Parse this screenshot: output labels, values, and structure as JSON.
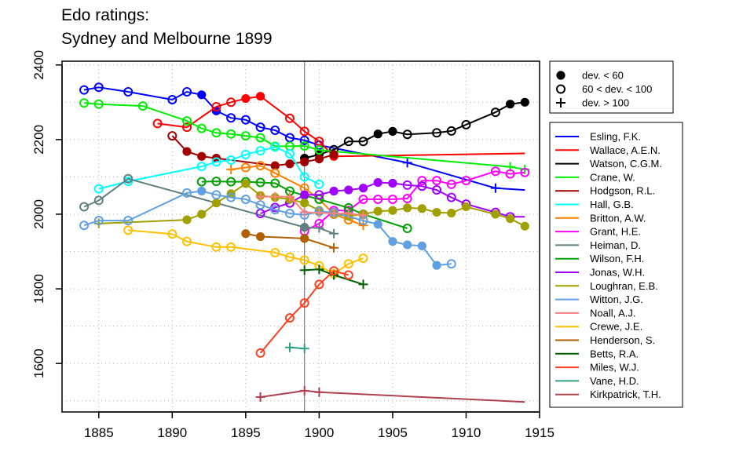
{
  "title_line1": "Edo ratings:",
  "title_line2": "Sydney and Melbourne 1899",
  "marker_legend": [
    {
      "marker": "filled-circle",
      "label": "dev. < 60"
    },
    {
      "marker": "open-circle",
      "label": "60 < dev. < 100"
    },
    {
      "marker": "plus",
      "label": "dev. > 100"
    }
  ],
  "chart_data": {
    "type": "line",
    "title": "Edo ratings:\nSydney and Melbourne 1899",
    "xlabel": "",
    "ylabel": "",
    "xlim": [
      1882.5,
      1915
    ],
    "ylim": [
      1470,
      2410
    ],
    "xticks": [
      1885,
      1890,
      1895,
      1900,
      1905,
      1910,
      1915
    ],
    "yticks": [
      1600,
      1800,
      2000,
      2200,
      2400
    ],
    "grid": true,
    "reference_line_x": 1899,
    "legend_placement": "right",
    "series": [
      {
        "name": "Esling, F.K.",
        "color": "#0000ff",
        "x": [
          1884,
          1885,
          1887,
          1890,
          1891,
          1892,
          1893,
          1894,
          1895,
          1896,
          1897,
          1898,
          1899,
          1900,
          1906,
          1912,
          1914
        ],
        "y": [
          2333,
          2340,
          2328,
          2307,
          2328,
          2320,
          2277,
          2258,
          2253,
          2233,
          2225,
          2205,
          2198,
          2185,
          2138,
          2070,
          2065
        ],
        "m": [
          "o",
          "o",
          "o",
          "o",
          "o",
          "f",
          "f",
          "o",
          "o",
          "o",
          "o",
          "o",
          "o",
          "o",
          "p",
          "p",
          "n"
        ]
      },
      {
        "name": "Wallace, A.E.N.",
        "color": "#ff0000",
        "x": [
          1889,
          1891,
          1893,
          1894,
          1895,
          1896,
          1898,
          1899,
          1900,
          1901,
          1914
        ],
        "y": [
          2243,
          2233,
          2288,
          2300,
          2310,
          2316,
          2257,
          2222,
          2195,
          2155,
          2163
        ],
        "m": [
          "o",
          "o",
          "o",
          "o",
          "f",
          "f",
          "o",
          "o",
          "o",
          "f",
          "n"
        ]
      },
      {
        "name": "Watson, C.G.M.",
        "color": "#000000",
        "x": [
          1899,
          1900,
          1901,
          1902,
          1903,
          1904,
          1905,
          1906,
          1908,
          1909,
          1910,
          1912,
          1913,
          1914
        ],
        "y": [
          2150,
          2160,
          2173,
          2195,
          2195,
          2215,
          2222,
          2214,
          2218,
          2223,
          2240,
          2273,
          2295,
          2300
        ],
        "m": [
          "f",
          "f",
          "o",
          "o",
          "o",
          "f",
          "f",
          "o",
          "o",
          "o",
          "o",
          "o",
          "f",
          "f"
        ]
      },
      {
        "name": "Crane, W.",
        "color": "#00ee00",
        "x": [
          1884,
          1885,
          1888,
          1891,
          1892,
          1893,
          1894,
          1895,
          1896,
          1897,
          1898,
          1899,
          1900,
          1913,
          1914
        ],
        "y": [
          2298,
          2295,
          2290,
          2250,
          2230,
          2218,
          2215,
          2210,
          2205,
          2182,
          2182,
          2183,
          2172,
          2127,
          2120
        ],
        "m": [
          "o",
          "o",
          "o",
          "o",
          "o",
          "o",
          "o",
          "o",
          "o",
          "o",
          "o",
          "o",
          "o",
          "p",
          "p"
        ]
      },
      {
        "name": "Hodgson, R.L.",
        "color": "#a00000",
        "x": [
          1890,
          1891,
          1892,
          1893,
          1897,
          1898,
          1899,
          1900,
          1901
        ],
        "y": [
          2210,
          2168,
          2155,
          2150,
          2130,
          2135,
          2140,
          2148,
          2160
        ],
        "m": [
          "o",
          "f",
          "f",
          "f",
          "f",
          "f",
          "f",
          "f",
          "f"
        ]
      },
      {
        "name": "Hall, G.B.",
        "color": "#00ffff",
        "x": [
          1885,
          1887,
          1892,
          1893,
          1894,
          1895,
          1896,
          1897,
          1898,
          1899,
          1900
        ],
        "y": [
          2068,
          2088,
          2128,
          2140,
          2145,
          2160,
          2170,
          2180,
          2162,
          2100,
          2080
        ],
        "m": [
          "o",
          "o",
          "o",
          "o",
          "o",
          "o",
          "o",
          "o",
          "o",
          "o",
          "o"
        ]
      },
      {
        "name": "Britton, A.W.",
        "color": "#ff8000",
        "x": [
          1894,
          1895,
          1896,
          1897,
          1899,
          1900,
          1901,
          1902,
          1903
        ],
        "y": [
          2120,
          2125,
          2130,
          2110,
          2070,
          2040,
          2000,
          1985,
          1970
        ],
        "m": [
          "p",
          "o",
          "o",
          "o",
          "o",
          "o",
          "o",
          "o",
          "p"
        ]
      },
      {
        "name": "Grant, H.E.",
        "color": "#ff00ff",
        "x": [
          1899,
          1900,
          1901,
          1902,
          1903,
          1904,
          1905,
          1906,
          1907,
          1908,
          1909,
          1910,
          1912,
          1913,
          1914
        ],
        "y": [
          1955,
          1975,
          2010,
          2010,
          2040,
          2040,
          2040,
          2042,
          2090,
          2090,
          2080,
          2090,
          2115,
          2108,
          2112
        ],
        "m": [
          "o",
          "o",
          "o",
          "o",
          "o",
          "o",
          "o",
          "o",
          "o",
          "o",
          "o",
          "o",
          "o",
          "o",
          "o"
        ]
      },
      {
        "name": "Heiman, D.",
        "color": "#608080",
        "x": [
          1884,
          1885,
          1887,
          1899,
          1900,
          1901
        ],
        "y": [
          2020,
          2037,
          2095,
          1965,
          1963,
          1948
        ],
        "m": [
          "o",
          "o",
          "o",
          "f",
          "p",
          "p"
        ]
      },
      {
        "name": "Wilson, F.H.",
        "color": "#00a000",
        "x": [
          1892,
          1893,
          1894,
          1895,
          1896,
          1897,
          1898,
          1899,
          1900,
          1902,
          1903,
          1906
        ],
        "y": [
          2087,
          2088,
          2087,
          2087,
          2085,
          2083,
          2062,
          2050,
          2040,
          2017,
          2000,
          1962
        ],
        "m": [
          "o",
          "o",
          "o",
          "o",
          "o",
          "o",
          "o",
          "f",
          "o",
          "o",
          "o",
          "o"
        ]
      },
      {
        "name": "Jonas, W.H.",
        "color": "#a000ff",
        "x": [
          1896,
          1897,
          1898,
          1899,
          1900,
          1901,
          1902,
          1903,
          1904,
          1905,
          1906,
          1907,
          1908,
          1909,
          1910,
          1912,
          1913,
          1914
        ],
        "y": [
          2002,
          2018,
          2030,
          2052,
          2052,
          2062,
          2065,
          2070,
          2085,
          2083,
          2078,
          2075,
          2065,
          2045,
          2027,
          2005,
          1993,
          1993
        ],
        "m": [
          "o",
          "o",
          "o",
          "f",
          "o",
          "f",
          "f",
          "f",
          "f",
          "f",
          "o",
          "o",
          "o",
          "o",
          "o",
          "o",
          "o",
          "n"
        ]
      },
      {
        "name": "Loughran, E.B.",
        "color": "#a0a000",
        "x": [
          1885,
          1891,
          1892,
          1893,
          1894,
          1895,
          1896,
          1897,
          1898,
          1899,
          1900,
          1901,
          1902,
          1903,
          1904,
          1905,
          1906,
          1907,
          1908,
          1909,
          1910,
          1912,
          1913,
          1914
        ],
        "y": [
          1975,
          1985,
          2000,
          2030,
          2055,
          2082,
          2050,
          2045,
          2040,
          2030,
          2010,
          2000,
          1995,
          2000,
          2008,
          2010,
          2017,
          2015,
          2005,
          2003,
          2020,
          2000,
          1988,
          1968
        ],
        "m": [
          "p",
          "f",
          "f",
          "f",
          "f",
          "f",
          "f",
          "f",
          "f",
          "f",
          "f",
          "f",
          "f",
          "f",
          "f",
          "f",
          "f",
          "f",
          "f",
          "f",
          "f",
          "f",
          "f",
          "f"
        ]
      },
      {
        "name": "Witton, J.G.",
        "color": "#60a0e0",
        "x": [
          1884,
          1885,
          1887,
          1891,
          1892,
          1893,
          1894,
          1895,
          1896,
          1897,
          1898,
          1899,
          1900,
          1901,
          1903,
          1904,
          1905,
          1906,
          1907,
          1908,
          1909
        ],
        "y": [
          1970,
          1983,
          1983,
          2057,
          2062,
          2052,
          2045,
          2040,
          2025,
          2012,
          2002,
          1998,
          2007,
          2005,
          1983,
          1973,
          1927,
          1918,
          1915,
          1863,
          1867
        ],
        "m": [
          "o",
          "o",
          "o",
          "o",
          "f",
          "o",
          "o",
          "o",
          "o",
          "o",
          "o",
          "o",
          "o",
          "o",
          "o",
          "f",
          "f",
          "f",
          "f",
          "f",
          "o"
        ]
      },
      {
        "name": "Noall, A.J.",
        "color": "#ff8080",
        "x": [
          1896,
          1897,
          1898,
          1899,
          1900,
          1901,
          1902,
          1903
        ],
        "y": [
          2047,
          2047,
          2047,
          2005,
          2004,
          2002,
          2002,
          1997
        ],
        "m": [
          "p",
          "p",
          "p",
          "p",
          "p",
          "p",
          "p",
          "p"
        ]
      },
      {
        "name": "Crewe, J.E.",
        "color": "#ffc000",
        "x": [
          1887,
          1890,
          1891,
          1893,
          1894,
          1897,
          1898,
          1899,
          1900,
          1901,
          1902,
          1903
        ],
        "y": [
          1957,
          1947,
          1927,
          1912,
          1912,
          1897,
          1885,
          1877,
          1862,
          1840,
          1867,
          1882
        ],
        "m": [
          "o",
          "o",
          "o",
          "o",
          "o",
          "o",
          "o",
          "o",
          "o",
          "o",
          "o",
          "o"
        ]
      },
      {
        "name": "Henderson, S.",
        "color": "#b06000",
        "x": [
          1895,
          1896,
          1899,
          1901
        ],
        "y": [
          1948,
          1940,
          1935,
          1910
        ],
        "m": [
          "f",
          "f",
          "f",
          "p"
        ]
      },
      {
        "name": "Betts, R.A.",
        "color": "#006000",
        "x": [
          1899,
          1900,
          1901,
          1903
        ],
        "y": [
          1850,
          1852,
          1837,
          1812
        ],
        "m": [
          "p",
          "p",
          "p",
          "p"
        ]
      },
      {
        "name": "Miles, W.J.",
        "color": "#ff4020",
        "x": [
          1896,
          1898,
          1899,
          1900,
          1901,
          1902
        ],
        "y": [
          1628,
          1722,
          1762,
          1812,
          1848,
          1837
        ],
        "m": [
          "o",
          "o",
          "o",
          "o",
          "o",
          "o"
        ]
      },
      {
        "name": "Vane, H.D.",
        "color": "#30a080",
        "x": [
          1898,
          1899
        ],
        "y": [
          1643,
          1640
        ],
        "m": [
          "p",
          "p"
        ]
      },
      {
        "name": "Kirkpatrick, T.H.",
        "color": "#b04050",
        "x": [
          1896,
          1899,
          1900,
          1914
        ],
        "y": [
          1510,
          1527,
          1523,
          1497
        ],
        "m": [
          "p",
          "p",
          "p",
          "n"
        ]
      }
    ]
  }
}
